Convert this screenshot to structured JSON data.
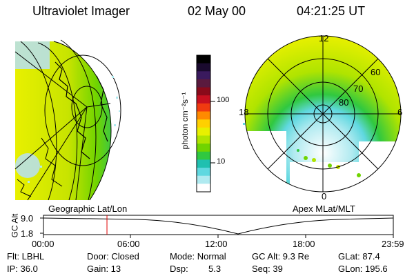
{
  "header": {
    "instrument": "Ultraviolet Imager",
    "date": "02 May 00",
    "time": "04:21:25 UT"
  },
  "colorbar": {
    "label": "photon cm⁻²s⁻¹",
    "ticks": [
      "100",
      "10"
    ],
    "colors": [
      "#000000",
      "#1a0a2e",
      "#3a1a5e",
      "#5a1a3e",
      "#8a0a1a",
      "#c81020",
      "#f03a10",
      "#ff8a00",
      "#ffd000",
      "#e8f000",
      "#b0e400",
      "#70d400",
      "#30c840",
      "#20c0b0",
      "#60d8e0",
      "#b0eaf0",
      "#ffffff"
    ]
  },
  "left_map": {
    "projection_label": "Geographic Lat/Lon"
  },
  "right_map": {
    "projection_label": "Apex MLat/MLT",
    "mlt_labels": [
      "12",
      "18",
      "6",
      "0"
    ],
    "mlat_labels": [
      "60",
      "70",
      "80"
    ]
  },
  "timeline": {
    "y_axis_label": "GC Alt",
    "y_ticks": [
      "9.0",
      "1.8"
    ],
    "x_ticks": [
      "00:00",
      "06:00",
      "12:00",
      "18:00",
      "23:59"
    ],
    "current_time_fraction": 0.1815,
    "marker_color": "#e00000"
  },
  "status": {
    "flt": "Flt: LBHL",
    "ip": "IP: 36.0",
    "door": "Door: Closed",
    "gain": "Gain: 13",
    "mode": "Mode: Normal",
    "dsp_label": "Dsp:",
    "dsp_value": "5.3",
    "gc_alt": "GC Alt: 9.3 Re",
    "seq": "Seq: 39",
    "glat": "GLat: 87.4",
    "glon": "GLon: 195.6"
  }
}
